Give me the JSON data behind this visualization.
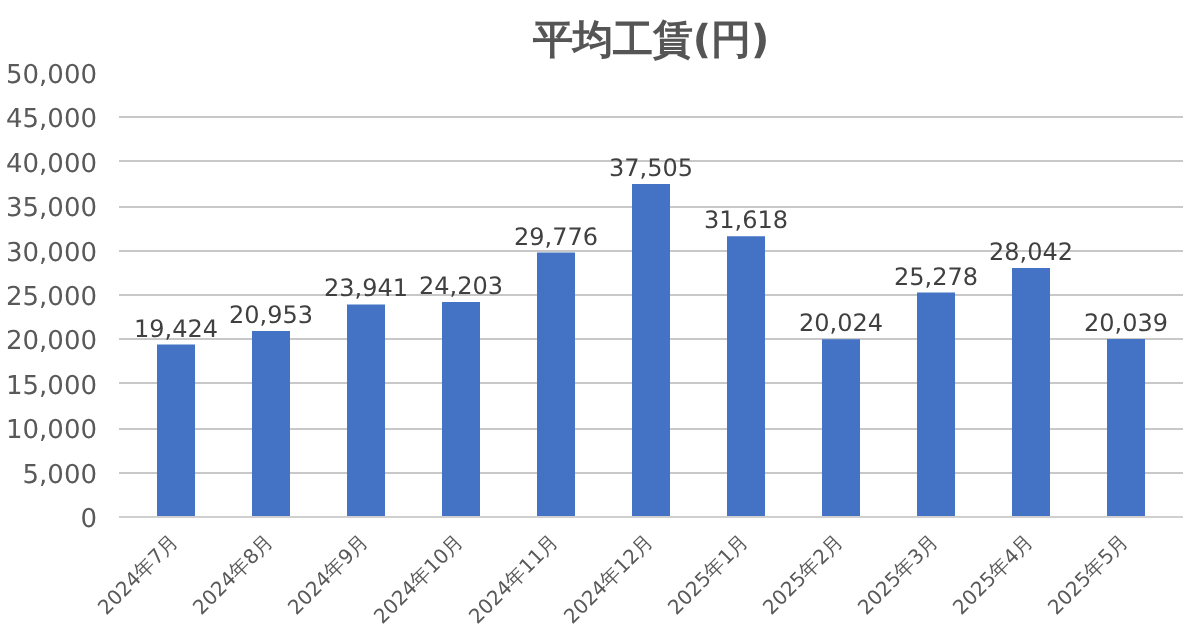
{
  "chart_data": {
    "type": "bar",
    "title": "平均工賃(円)",
    "categories": [
      "2024年7月",
      "2024年8月",
      "2024年9月",
      "2024年10月",
      "2024年11月",
      "2024年12月",
      "2025年1月",
      "2025年2月",
      "2025年3月",
      "2025年4月",
      "2025年5月"
    ],
    "values": [
      19424,
      20953,
      23941,
      24203,
      29776,
      37505,
      31618,
      20024,
      25278,
      28042,
      20039
    ],
    "color": "#4472c4",
    "grid": "y",
    "value_labels": [
      "19,424",
      "20,953",
      "23,941",
      "24,203",
      "29,776",
      "37,505",
      "31,618",
      "20,024",
      "25,278",
      "28,042",
      "20,039"
    ],
    "ylim": [
      0,
      50000
    ],
    "yticks": [
      {
        "value": 0,
        "label": "0"
      },
      {
        "value": 5000,
        "label": "5,000"
      },
      {
        "value": 10000,
        "label": "10,000"
      },
      {
        "value": 15000,
        "label": "15,000"
      },
      {
        "value": 20000,
        "label": "20,000"
      },
      {
        "value": 25000,
        "label": "25,000"
      },
      {
        "value": 30000,
        "label": "30,000"
      },
      {
        "value": 35000,
        "label": "35,000"
      },
      {
        "value": 40000,
        "label": "40,000"
      },
      {
        "value": 45000,
        "label": "45,000"
      },
      {
        "value": 50000,
        "label": "50,000"
      }
    ]
  }
}
